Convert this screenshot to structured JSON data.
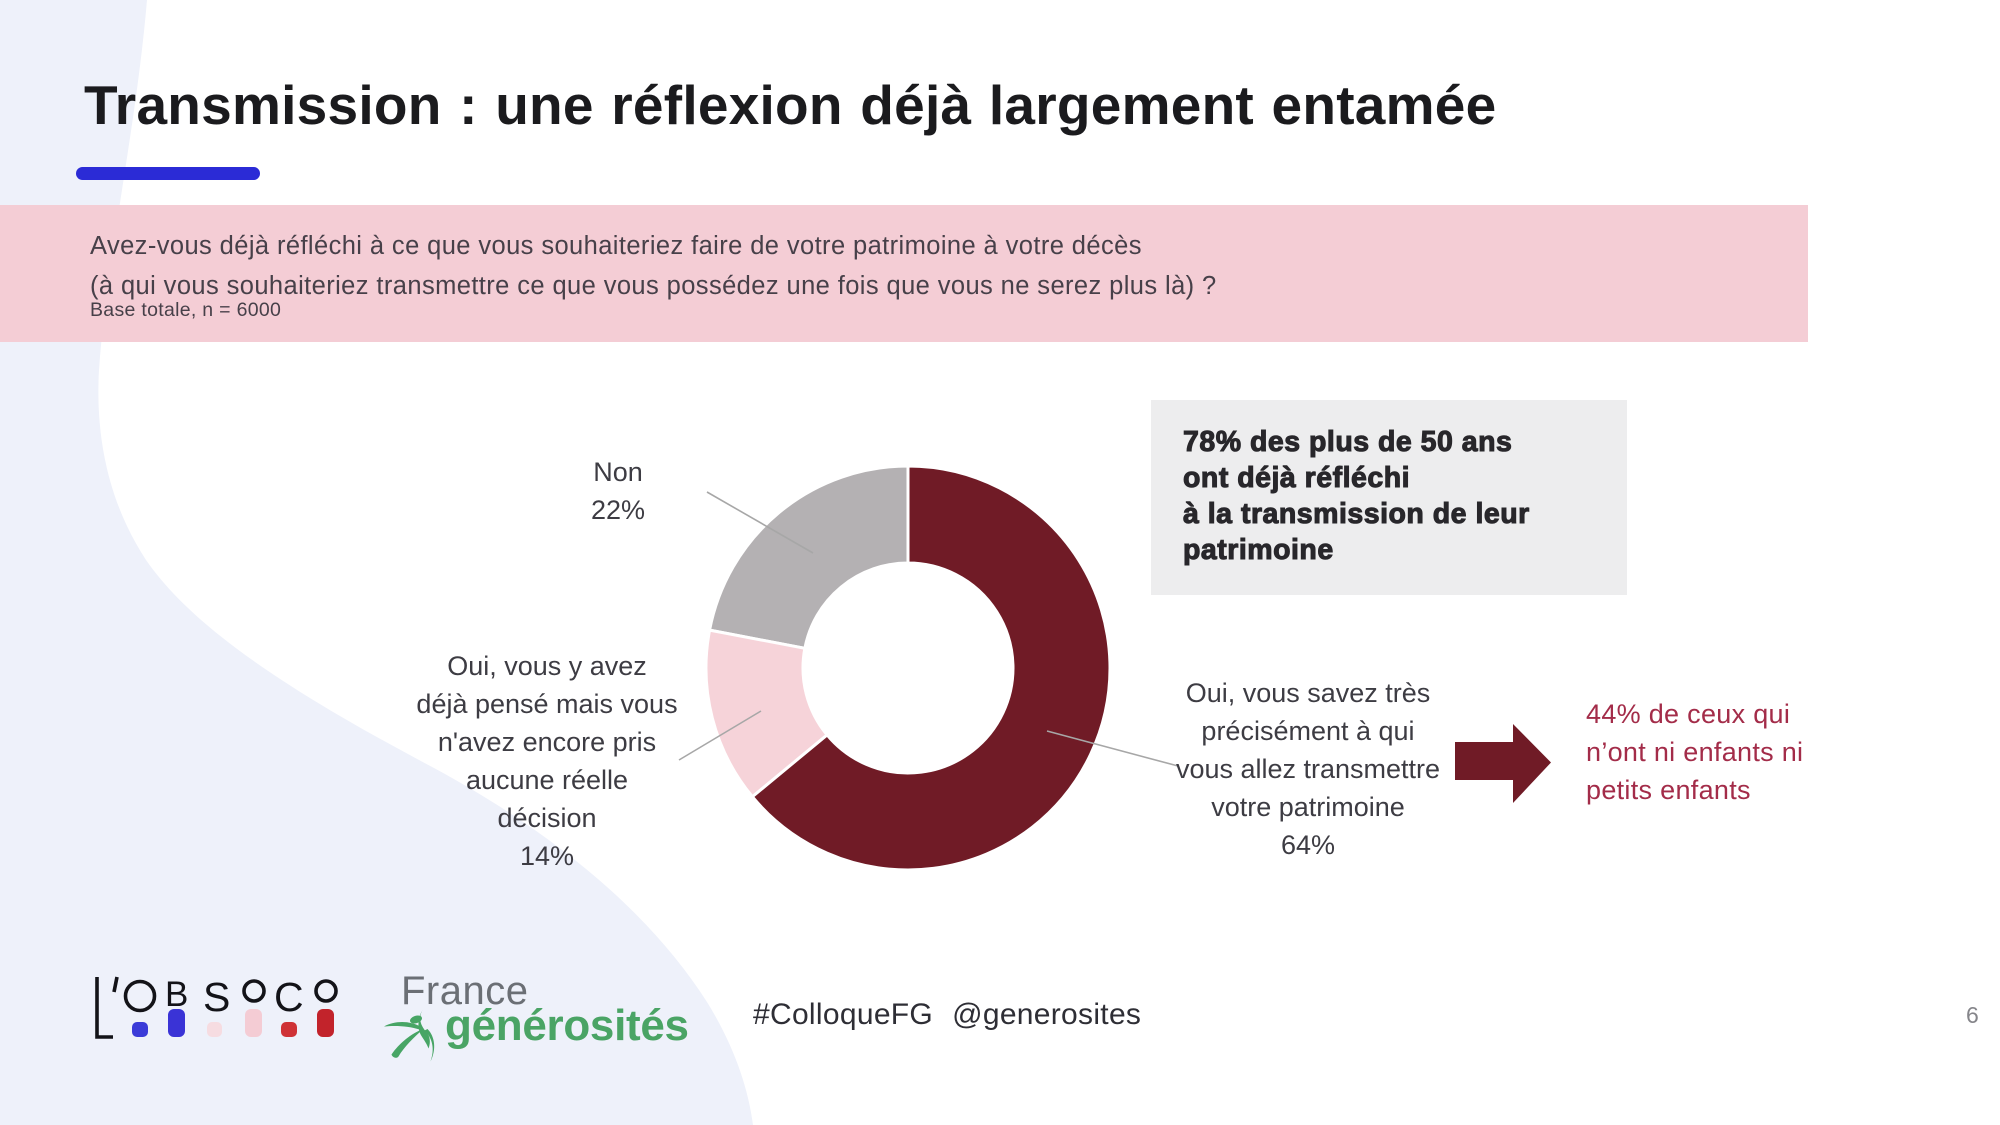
{
  "slide": {
    "title": "Transmission : une réflexion déjà largement entamée",
    "page_number": "6"
  },
  "question_banner": {
    "line1": "Avez-vous déjà réfléchi à ce que vous souhaiteriez faire de votre patrimoine à votre décès",
    "line2": "(à qui vous souhaiteriez transmettre ce que vous possédez une fois que vous ne serez plus là) ?",
    "base": "Base totale, n = 6000"
  },
  "chart_data": {
    "type": "pie",
    "donut": true,
    "start_angle_deg": 0,
    "clockwise": true,
    "slices": [
      {
        "label": "Oui, vous savez très précisément à qui vous allez transmettre votre patrimoine",
        "value": 64,
        "color": "#701b26"
      },
      {
        "label": "Oui, vous y avez déjà pensé mais vous n'avez encore pris aucune réelle décision",
        "value": 14,
        "color": "#f6d3d9"
      },
      {
        "label": "Non",
        "value": 22,
        "color": "#b4b1b3"
      }
    ]
  },
  "chart_labels": {
    "non": "Non\n22%",
    "pink": "Oui, vous y avez\ndéjà pensé mais vous\nn'avez encore pris\naucune réelle\ndécision\n14%",
    "maroon": "Oui, vous savez très\nprécisément à qui\nvous allez transmettre\nvotre patrimoine\n64%"
  },
  "callout_box": {
    "text": "78% des plus de 50 ans\nont déjà réfléchi\nà la transmission de leur\npatrimoine"
  },
  "arrow_note": {
    "text": "44% de ceux qui\nn’ont ni enfants ni\npetits enfants"
  },
  "footer": {
    "hashtag": "#ColloqueFG",
    "handle": "@generosites",
    "obsoco_letters": {
      "l": "L",
      "apos": "’",
      "b": "B",
      "s": "S",
      "c": "C"
    },
    "fg_line1": "France",
    "fg_line2": "générosités"
  },
  "colors": {
    "dark": "#1b1b1e",
    "blue": "#2b2bd6",
    "banner-pink": "#f4cdd5",
    "lavender": "#eef1fa",
    "maroon": "#701b26",
    "slice-pink": "#f6d3d9",
    "slice-grey": "#b4b1b3",
    "box-grey": "#ededee",
    "crimson": "#a32c49",
    "green": "#4aa96c",
    "fg-grey": "#8a8d92",
    "body-text": "#474049",
    "label-text": "#3d3c43",
    "footer-text": "#2e2e35",
    "page-grey": "#85858a",
    "leader": "#a7a7a7"
  }
}
